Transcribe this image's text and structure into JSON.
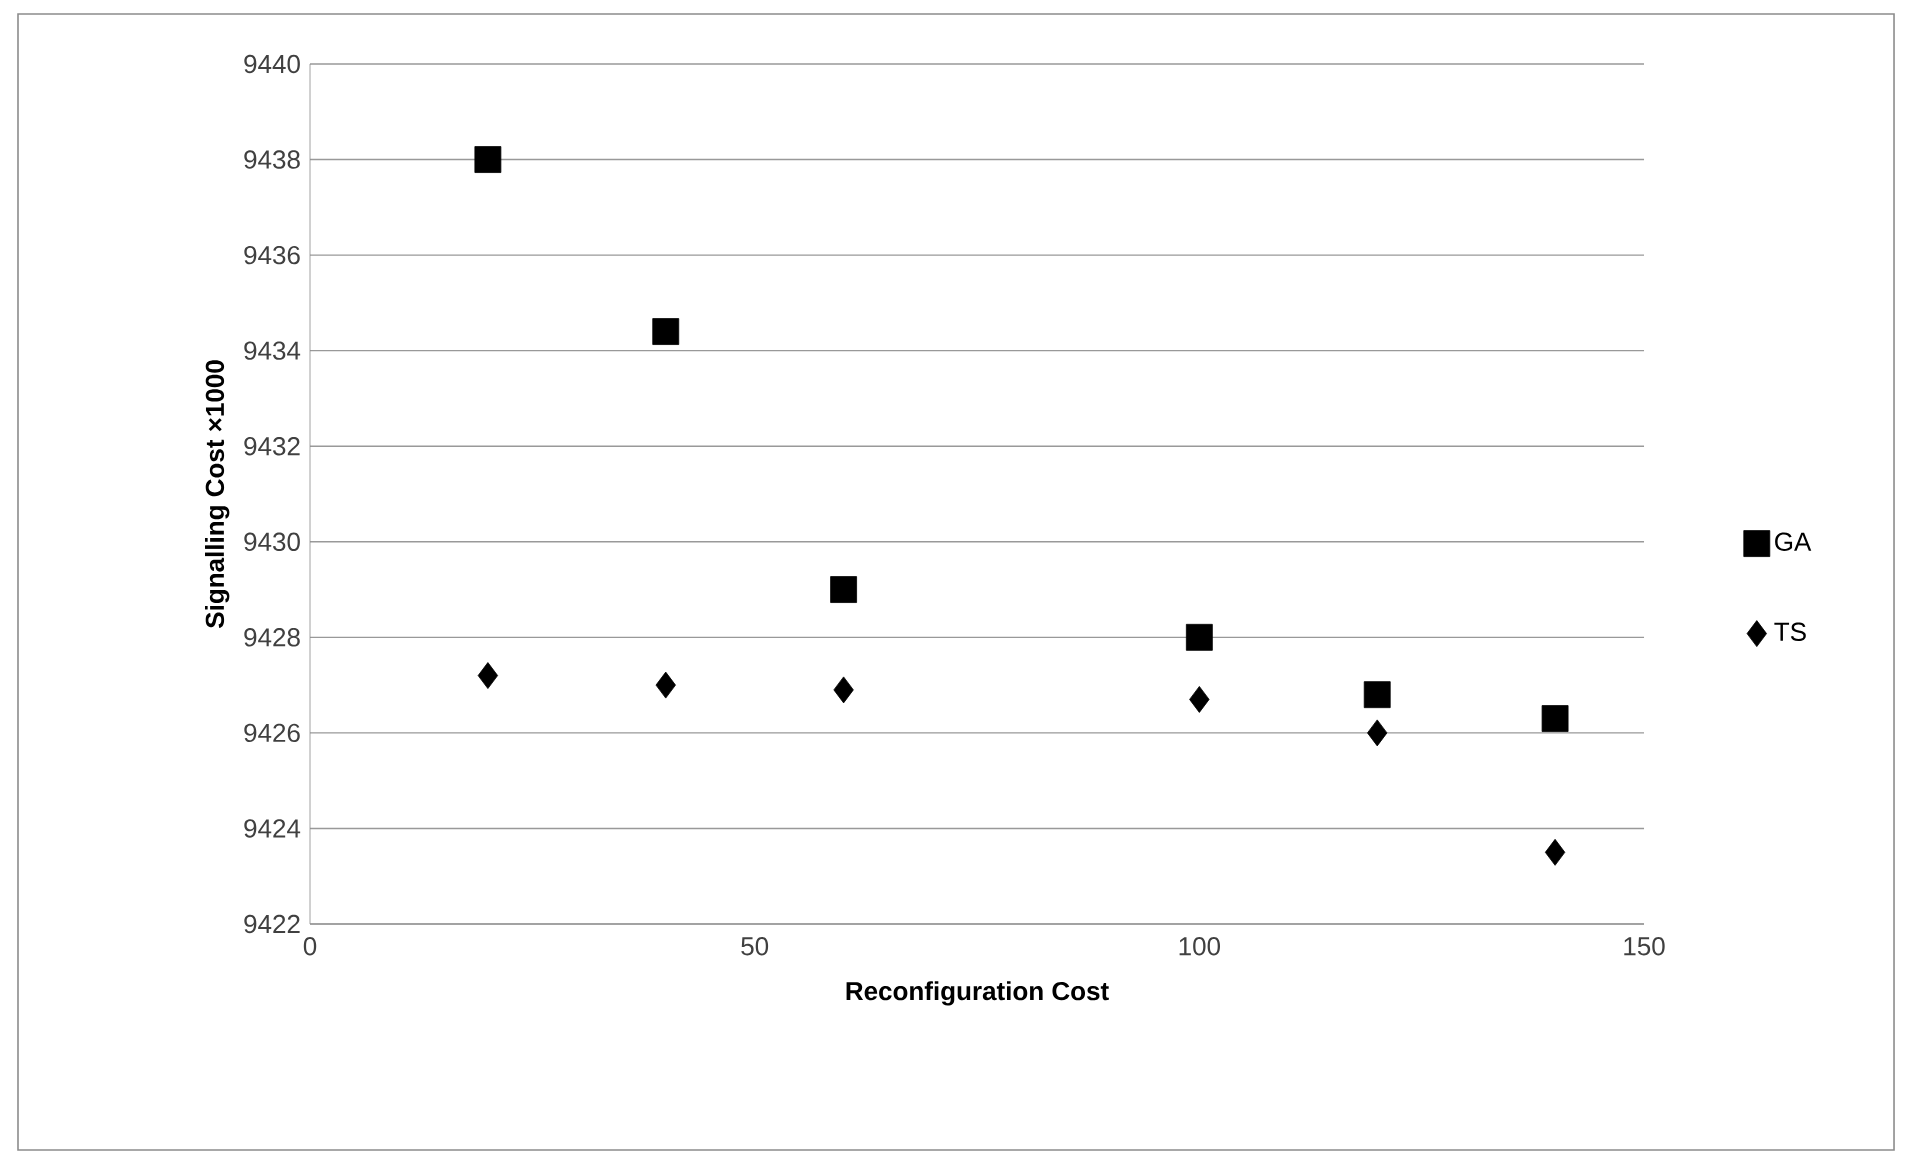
{
  "chart_data": {
    "type": "scatter",
    "xlabel": "Reconfiguration Cost",
    "ylabel": "Signalling Cost ×1000",
    "x": [
      20,
      40,
      60,
      100,
      120,
      140
    ],
    "series": [
      {
        "name": "GA",
        "color": "#000000",
        "marker": "square",
        "values": [
          9438,
          9434.4,
          9429,
          9428,
          9426.8,
          9426.3
        ]
      },
      {
        "name": "TS",
        "color": "#000000",
        "marker": "diamond",
        "values": [
          9427.2,
          9427.0,
          9426.9,
          9426.7,
          9426.0,
          9423.5
        ]
      }
    ],
    "xlim": [
      0,
      150
    ],
    "xticks": [
      0,
      50,
      100,
      150
    ],
    "ylim": [
      9422,
      9440
    ],
    "yticks": [
      9422,
      9424,
      9426,
      9428,
      9430,
      9432,
      9434,
      9436,
      9438,
      9440
    ],
    "grid": "y",
    "legend": "right"
  }
}
